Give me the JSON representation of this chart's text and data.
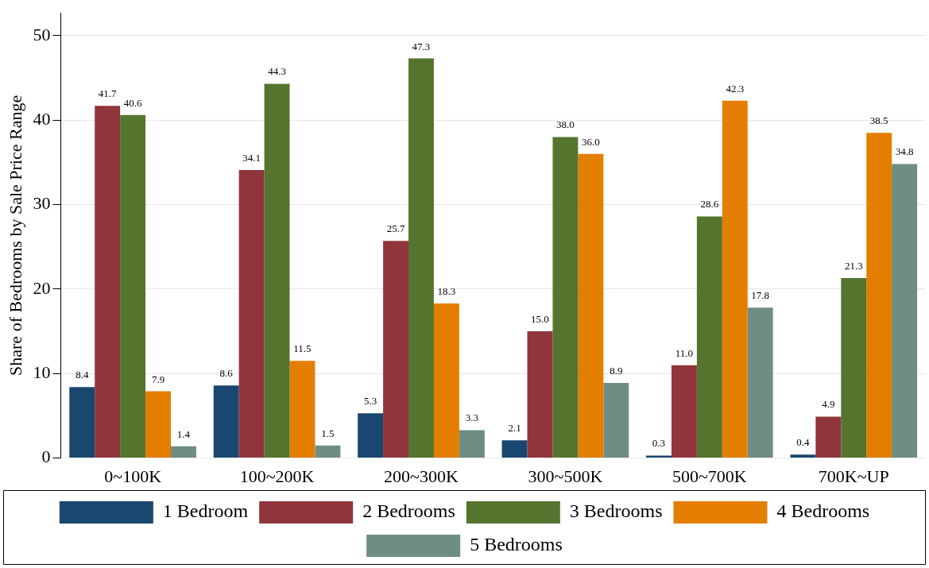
{
  "chart_data": {
    "type": "bar",
    "ylabel": "Share of Bedrooms by Sale Price Range",
    "categories": [
      "0~100K",
      "100~200K",
      "200~300K",
      "300~500K",
      "500~700K",
      "700K~UP"
    ],
    "series": [
      {
        "name": "1 Bedroom",
        "color": "#1a476f",
        "values": [
          8.4,
          8.6,
          5.3,
          2.1,
          0.3,
          0.4
        ],
        "value_labels": [
          "8.4",
          "8.6",
          "5.3",
          "2.1",
          "0.3",
          "0.4"
        ]
      },
      {
        "name": "2 Bedrooms",
        "color": "#90353b",
        "values": [
          41.7,
          34.1,
          25.7,
          15.0,
          11.0,
          4.9
        ],
        "value_labels": [
          "41.7",
          "34.1",
          "25.7",
          "15.0",
          "11.0",
          "4.9"
        ]
      },
      {
        "name": "3 Bedrooms",
        "color": "#55752f",
        "values": [
          40.6,
          44.3,
          47.3,
          38.0,
          28.6,
          21.3
        ],
        "value_labels": [
          "40.6",
          "44.3",
          "47.3",
          "38.0",
          "28.6",
          "21.3"
        ]
      },
      {
        "name": "4 Bedrooms",
        "color": "#e37e00",
        "values": [
          7.9,
          11.5,
          18.3,
          36.0,
          42.3,
          38.5
        ],
        "value_labels": [
          "7.9",
          "11.5",
          "18.3",
          "36.0",
          "42.3",
          "38.5"
        ]
      },
      {
        "name": "5 Bedrooms",
        "color": "#6e8e84",
        "values": [
          1.4,
          1.5,
          3.3,
          8.9,
          17.8,
          34.8
        ],
        "value_labels": [
          "1.4",
          "1.5",
          "3.3",
          "8.9",
          "17.8",
          "34.8"
        ]
      }
    ],
    "ylim": [
      0,
      52.7
    ],
    "yticks": [
      0,
      10,
      20,
      30,
      40,
      50
    ],
    "grid": "y",
    "legend": "bottom"
  }
}
